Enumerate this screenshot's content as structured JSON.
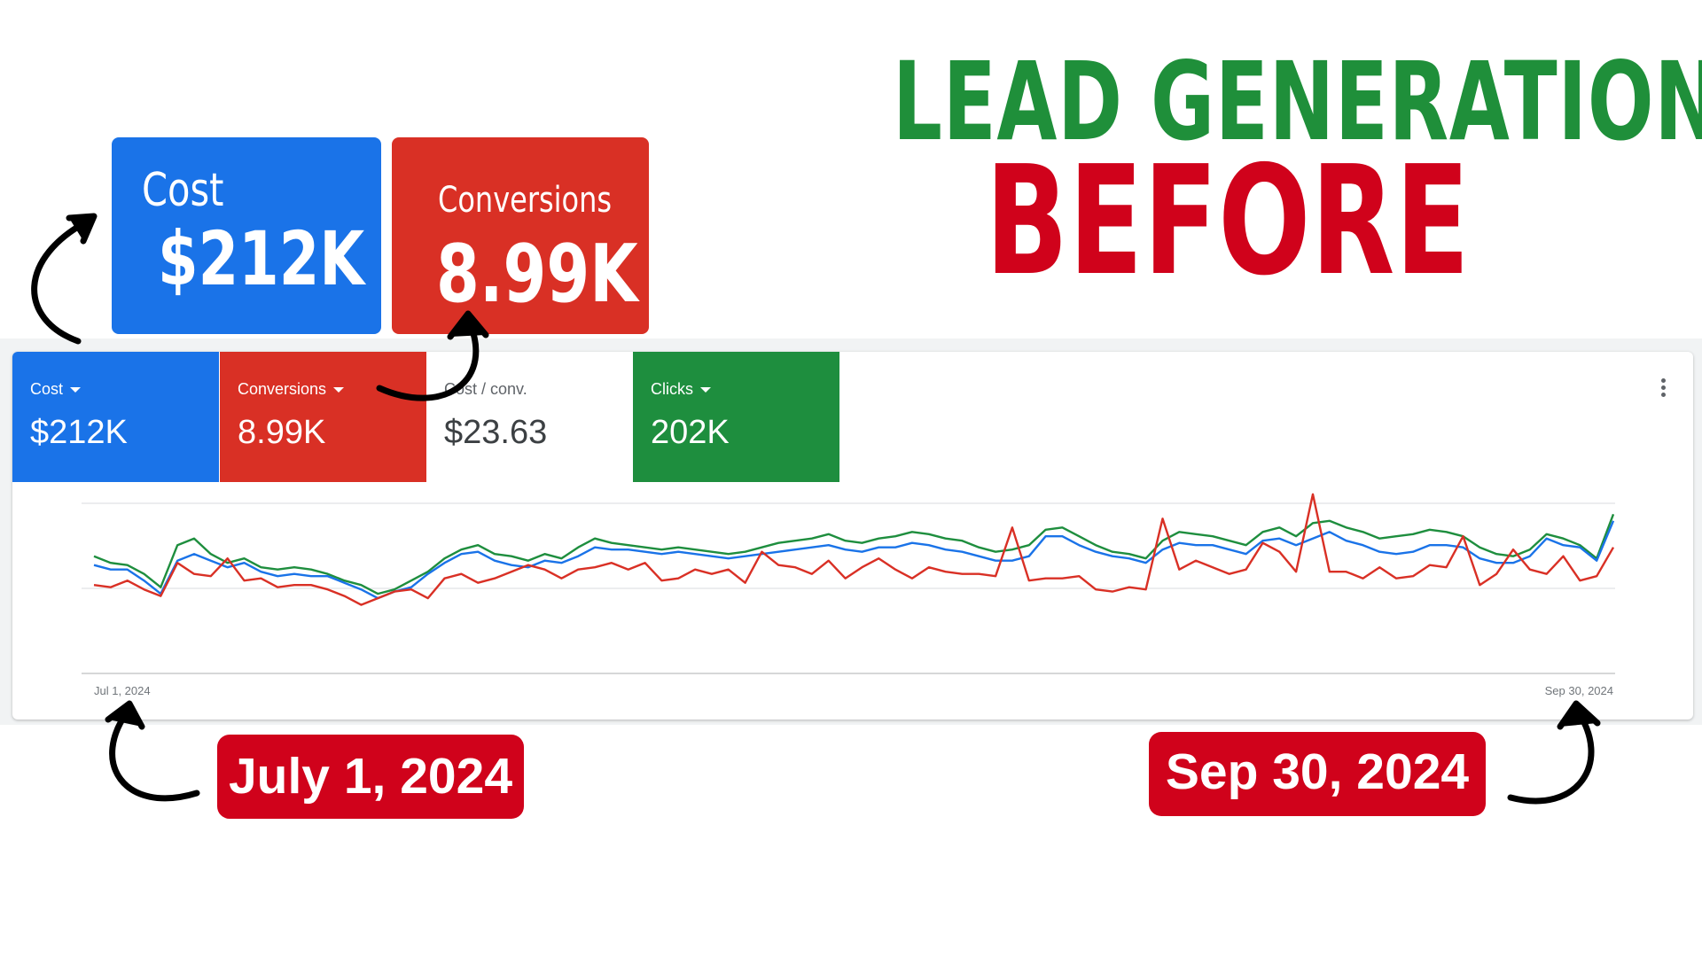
{
  "headline": {
    "line1": "LEAD GENERATION",
    "line2": "BEFORE"
  },
  "callouts": {
    "cost": {
      "label": "Cost",
      "value": "$212K"
    },
    "conversions": {
      "label": "Conversions",
      "value": "8.99K"
    }
  },
  "tiles": [
    {
      "label": "Cost",
      "value": "$212K",
      "dropdown": true
    },
    {
      "label": "Conversions",
      "value": "8.99K",
      "dropdown": true
    },
    {
      "label": "Cost / conv.",
      "value": "$23.63",
      "dropdown": false
    },
    {
      "label": "Clicks",
      "value": "202K",
      "dropdown": true
    }
  ],
  "badges": {
    "start": "July 1, 2024",
    "end": "Sep 30, 2024"
  },
  "colors": {
    "blue": "#1a73e8",
    "red": "#d93025",
    "green": "#1e8e3e",
    "headline_green": "#1f8f3a",
    "headline_red": "#d0021b"
  },
  "chart_data": {
    "type": "line",
    "x_start_label": "Jul 1, 2024",
    "x_end_label": "Sep 30, 2024",
    "num_points": 92,
    "y_axis_labels_shown": false,
    "grid": true,
    "series": [
      {
        "color": "#1e8e3e",
        "values": [
          53,
          50,
          49,
          45,
          39,
          58,
          61,
          54,
          50,
          52,
          48,
          47,
          48,
          47,
          45,
          42,
          40,
          36,
          38,
          42,
          46,
          52,
          56,
          58,
          54,
          53,
          51,
          54,
          52,
          57,
          61,
          59,
          58,
          57,
          56,
          57,
          56,
          55,
          54,
          55,
          57,
          59,
          60,
          61,
          63,
          60,
          59,
          61,
          62,
          64,
          63,
          61,
          60,
          57,
          55,
          56,
          58,
          65,
          66,
          62,
          58,
          55,
          54,
          52,
          60,
          64,
          63,
          62,
          60,
          58,
          64,
          66,
          62,
          68,
          69,
          66,
          64,
          61,
          62,
          63,
          65,
          64,
          62,
          57,
          54,
          53,
          56,
          63,
          61,
          58,
          52,
          72
        ]
      },
      {
        "color": "#1a73e8",
        "values": [
          49,
          47,
          47,
          42,
          36,
          51,
          54,
          51,
          48,
          50,
          46,
          44,
          45,
          44,
          44,
          41,
          38,
          34,
          37,
          39,
          45,
          50,
          54,
          55,
          51,
          49,
          48,
          51,
          50,
          53,
          57,
          56,
          56,
          55,
          54,
          55,
          54,
          53,
          52,
          53,
          54,
          55,
          56,
          57,
          58,
          56,
          55,
          57,
          57,
          59,
          58,
          56,
          55,
          53,
          51,
          51,
          53,
          62,
          62,
          58,
          55,
          53,
          52,
          50,
          56,
          59,
          58,
          58,
          56,
          54,
          60,
          61,
          58,
          61,
          64,
          60,
          58,
          55,
          54,
          55,
          58,
          58,
          57,
          52,
          50,
          50,
          53,
          61,
          58,
          57,
          51,
          69
        ]
      },
      {
        "color": "#d93025",
        "values": [
          40,
          39,
          42,
          38,
          35,
          50,
          45,
          44,
          52,
          42,
          43,
          39,
          40,
          40,
          38,
          35,
          31,
          34,
          37,
          38,
          34,
          43,
          45,
          41,
          43,
          46,
          49,
          47,
          43,
          47,
          48,
          50,
          47,
          50,
          42,
          43,
          47,
          45,
          47,
          41,
          55,
          49,
          48,
          45,
          51,
          43,
          48,
          52,
          47,
          43,
          48,
          46,
          45,
          45,
          44,
          66,
          42,
          43,
          43,
          44,
          38,
          37,
          39,
          38,
          70,
          47,
          51,
          48,
          45,
          47,
          59,
          55,
          46,
          81,
          46,
          46,
          43,
          48,
          43,
          44,
          49,
          48,
          62,
          40,
          45,
          56,
          47,
          45,
          53,
          42,
          44,
          57
        ]
      }
    ]
  }
}
